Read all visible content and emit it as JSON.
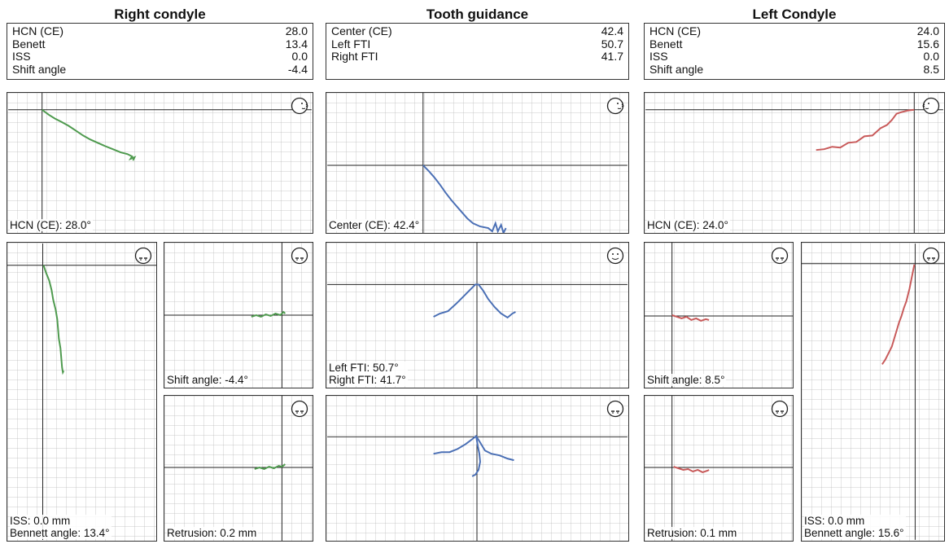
{
  "columns": {
    "right": {
      "title": "Right condyle",
      "rows": [
        {
          "label": "HCN (CE)",
          "value": "28.0"
        },
        {
          "label": "Benett",
          "value": "13.4"
        },
        {
          "label": "ISS",
          "value": "0.0"
        },
        {
          "label": "Shift angle",
          "value": "-4.4"
        }
      ]
    },
    "center": {
      "title": "Tooth guidance",
      "rows": [
        {
          "label": "Center (CE)",
          "value": "42.4"
        },
        {
          "label": "Left FTI",
          "value": "50.7"
        },
        {
          "label": "Right FTI",
          "value": "41.7"
        }
      ]
    },
    "left": {
      "title": "Left Condyle",
      "rows": [
        {
          "label": "HCN (CE)",
          "value": "24.0"
        },
        {
          "label": "Benett",
          "value": "15.6"
        },
        {
          "label": "ISS",
          "value": "0.0"
        },
        {
          "label": "Shift angle",
          "value": "8.5"
        }
      ]
    }
  },
  "panels": {
    "right_sagittal": {
      "label": "HCN (CE): 28.0°"
    },
    "right_horizontal": {
      "label_line1": "ISS: 0.0 mm",
      "label_line2": "Bennett angle: 13.4°"
    },
    "right_shift": {
      "label": "Shift angle: -4.4°"
    },
    "right_retrusion": {
      "label": "Retrusion: 0.2 mm"
    },
    "center_sagittal": {
      "label": "Center (CE): 42.4°"
    },
    "center_frontal": {
      "label_line1": "Left FTI: 50.7°",
      "label_line2": "Right FTI: 41.7°"
    },
    "center_horizontal": {},
    "left_sagittal": {
      "label": "HCN (CE): 24.0°"
    },
    "left_shift": {
      "label": "Shift angle: 8.5°"
    },
    "left_retrusion": {
      "label": "Retrusion: 0.1 mm"
    },
    "left_horizontal": {
      "label_line1": "ISS: 0.0 mm",
      "label_line2": "Bennett angle: 15.6°"
    }
  },
  "colors": {
    "right_trace": "#4e9a4e",
    "center_trace": "#4a6fb5",
    "left_trace": "#c85a5a",
    "axis": "#222222",
    "grid": "#d9d9d9"
  },
  "icons": {
    "side_view": "head-side-view-icon",
    "top_view": "head-top-view-icon",
    "front_view": "face-front-view-icon"
  }
}
